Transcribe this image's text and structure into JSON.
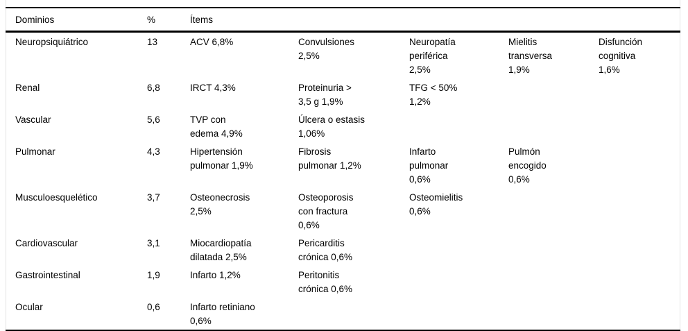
{
  "table": {
    "headers": {
      "domains": "Dominios",
      "percent": "%",
      "items": "Ítems"
    },
    "rows": [
      {
        "domain": "Neuropsiquiátrico",
        "pct": "13",
        "items": [
          "ACV 6,8%",
          "Convulsiones\n2,5%",
          "Neuropatía\nperiférica\n2,5%",
          "Mielitis\ntransversa\n1,9%",
          "Disfunción\ncognitiva\n1,6%"
        ]
      },
      {
        "domain": "Renal",
        "pct": "6,8",
        "items": [
          "IRCT 4,3%",
          "Proteinuria >\n3,5 g 1,9%",
          "TFG < 50%\n1,2%"
        ]
      },
      {
        "domain": "Vascular",
        "pct": "5,6",
        "items": [
          "TVP con\nedema 4,9%",
          "Úlcera o estasis\n1,06%"
        ]
      },
      {
        "domain": "Pulmonar",
        "pct": "4,3",
        "items": [
          "Hipertensión\npulmonar 1,9%",
          "Fibrosis\npulmonar 1,2%",
          "Infarto\npulmonar\n0,6%",
          "Pulmón\nencogido\n0,6%"
        ]
      },
      {
        "domain": "Musculoesquelético",
        "pct": "3,7",
        "items": [
          "Osteonecrosis\n2,5%",
          "Osteoporosis\ncon fractura\n0,6%",
          "Osteomielitis\n0,6%"
        ]
      },
      {
        "domain": "Cardiovascular",
        "pct": "3,1",
        "items": [
          "Miocardiopatía\ndilatada 2,5%",
          "Pericarditis\ncrónica 0,6%"
        ]
      },
      {
        "domain": "Gastrointestinal",
        "pct": "1,9",
        "items": [
          "Infarto 1,2%",
          "Peritonitis\ncrónica 0,6%"
        ]
      },
      {
        "domain": "Ocular",
        "pct": "0,6",
        "items": [
          "Infarto retiniano\n0,6%"
        ]
      }
    ]
  }
}
